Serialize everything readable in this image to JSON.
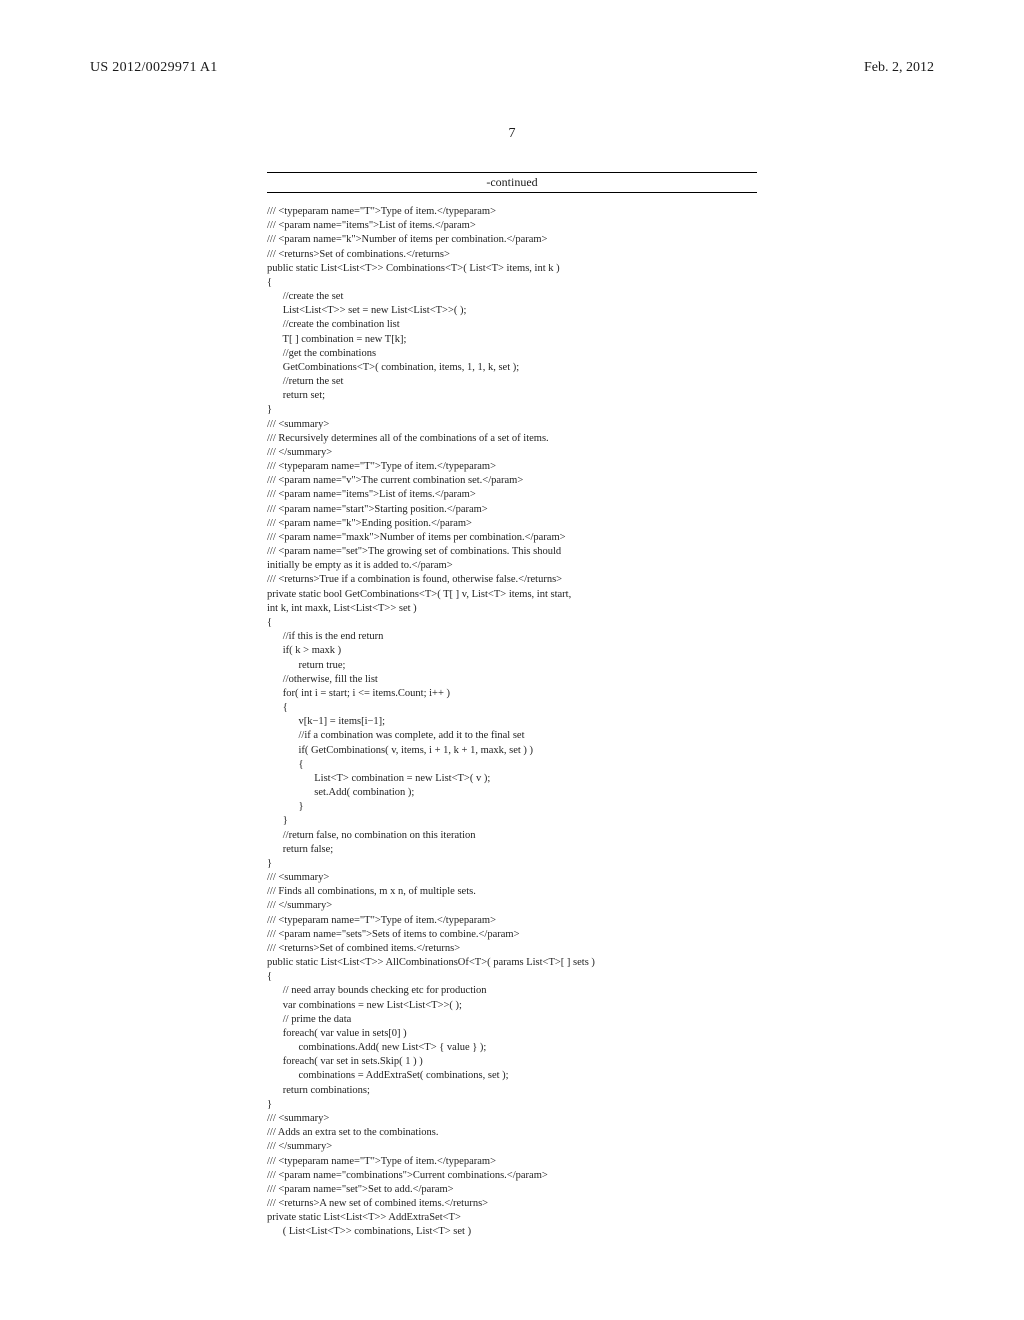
{
  "header": {
    "publication_number": "US 2012/0029971 A1",
    "publication_date": "Feb. 2, 2012"
  },
  "page_number": "7",
  "continued_label": "-continued",
  "code": "/// <typeparam name=\"T\">Type of item.</typeparam>\n/// <param name=\"items\">List of items.</param>\n/// <param name=\"k\">Number of items per combination.</param>\n/// <returns>Set of combinations.</returns>\npublic static List<List<T>> Combinations<T>( List<T> items, int k )\n{\n      //create the set\n      List<List<T>> set = new List<List<T>>( );\n      //create the combination list\n      T[ ] combination = new T[k];\n      //get the combinations\n      GetCombinations<T>( combination, items, 1, 1, k, set );\n      //return the set\n      return set;\n}\n/// <summary>\n/// Recursively determines all of the combinations of a set of items.\n/// </summary>\n/// <typeparam name=\"T\">Type of item.</typeparam>\n/// <param name=\"v\">The current combination set.</param>\n/// <param name=\"items\">List of items.</param>\n/// <param name=\"start\">Starting position.</param>\n/// <param name=\"k\">Ending position.</param>\n/// <param name=\"maxk\">Number of items per combination.</param>\n/// <param name=\"set\">The growing set of combinations. This should\ninitially be empty as it is added to.</param>\n/// <returns>True if a combination is found, otherwise false.</returns>\nprivate static bool GetCombinations<T>( T[ ] v, List<T> items, int start,\nint k, int maxk, List<List<T>> set )\n{\n      //if this is the end return\n      if( k > maxk )\n            return true;\n      //otherwise, fill the list\n      for( int i = start; i <= items.Count; i++ )\n      {\n            v[k−1] = items[i−1];\n            //if a combination was complete, add it to the final set\n            if( GetCombinations( v, items, i + 1, k + 1, maxk, set ) )\n            {\n                  List<T> combination = new List<T>( v );\n                  set.Add( combination );\n            }\n      }\n      //return false, no combination on this iteration\n      return false;\n}\n/// <summary>\n/// Finds all combinations, m x n, of multiple sets.\n/// </summary>\n/// <typeparam name=\"T\">Type of item.</typeparam>\n/// <param name=\"sets\">Sets of items to combine.</param>\n/// <returns>Set of combined items.</returns>\npublic static List<List<T>> AllCombinationsOf<T>( params List<T>[ ] sets )\n{\n      // need array bounds checking etc for production\n      var combinations = new List<List<T>>( );\n      // prime the data\n      foreach( var value in sets[0] )\n            combinations.Add( new List<T> { value } );\n      foreach( var set in sets.Skip( 1 ) )\n            combinations = AddExtraSet( combinations, set );\n      return combinations;\n}\n/// <summary>\n/// Adds an extra set to the combinations.\n/// </summary>\n/// <typeparam name=\"T\">Type of item.</typeparam>\n/// <param name=\"combinations\">Current combinations.</param>\n/// <param name=\"set\">Set to add.</param>\n/// <returns>A new set of combined items.</returns>\nprivate static List<List<T>> AddExtraSet<T>\n      ( List<List<T>> combinations, List<T> set )",
  "style": {
    "body_width": 1024,
    "body_height": 1320,
    "background_color": "#ffffff",
    "text_color": "#1a1a1a",
    "header_fontsize": 14,
    "page_number_fontsize": 14,
    "continued_fontsize": 12,
    "code_fontsize": 10.5,
    "code_line_height": 1.35,
    "code_block_width": 490,
    "rule_color": "#000000",
    "font_family": "Times New Roman"
  }
}
